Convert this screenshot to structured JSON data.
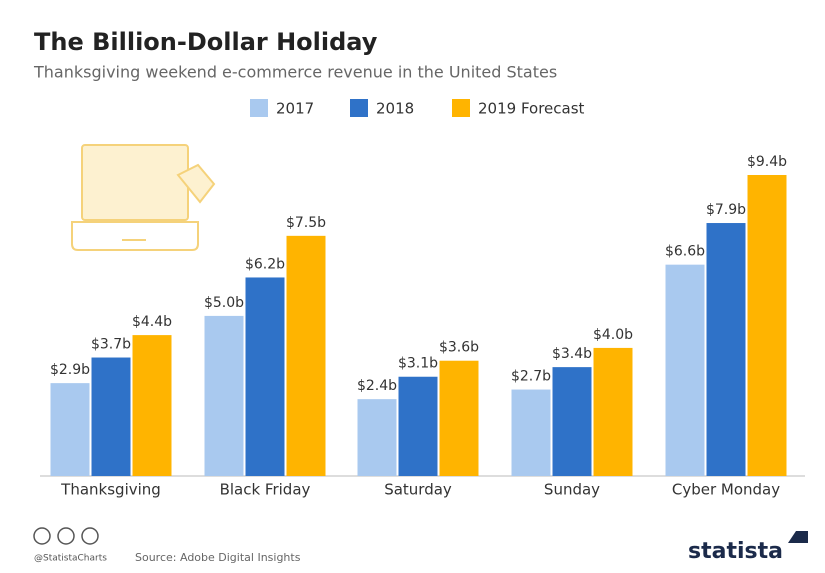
{
  "chart_data": {
    "type": "bar",
    "title": "The Billion-Dollar Holiday",
    "subtitle": "Thanksgiving weekend e-commerce revenue in the United States",
    "categories": [
      "Thanksgiving",
      "Black Friday",
      "Saturday",
      "Sunday",
      "Cyber Monday"
    ],
    "series": [
      {
        "name": "2017",
        "color": "#a9c9ef",
        "values": [
          2.9,
          5.0,
          2.4,
          2.7,
          6.6
        ],
        "value_labels": [
          "$2.9b",
          "$5.0b",
          "$2.4b",
          "$2.7b",
          "$6.6b"
        ]
      },
      {
        "name": "2018",
        "color": "#2f72c8",
        "values": [
          3.7,
          6.2,
          3.1,
          3.4,
          7.9
        ],
        "value_labels": [
          "$3.7b",
          "$6.2b",
          "$3.1b",
          "$3.4b",
          "$7.9b"
        ]
      },
      {
        "name": "2019 Forecast",
        "color": "#ffb400",
        "values": [
          4.4,
          7.5,
          3.6,
          4.0,
          9.4
        ],
        "value_labels": [
          "$4.4b",
          "$7.5b",
          "$3.6b",
          "$4.0b",
          "$9.4b"
        ]
      }
    ],
    "legend": "top",
    "handle": "@StatistaCharts",
    "source": "Source: Adobe Digital Insights",
    "brand": "statista"
  }
}
